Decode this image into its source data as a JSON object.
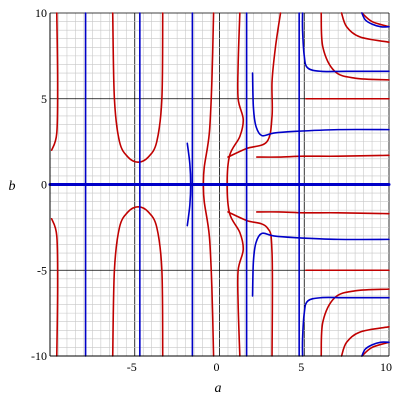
{
  "chart_data": {
    "type": "line",
    "title": "",
    "xlabel": "a",
    "ylabel": "b",
    "xlim": [
      -10,
      10
    ],
    "ylim": [
      -10,
      10
    ],
    "grid": true,
    "x_ticks": [
      {
        "value": -5,
        "label": "-5"
      },
      {
        "value": 0,
        "label": "0"
      },
      {
        "value": 5,
        "label": "5"
      },
      {
        "value": 10,
        "label": "10"
      }
    ],
    "y_ticks": [
      {
        "value": -10,
        "label": "-10"
      },
      {
        "value": -5,
        "label": "-5"
      },
      {
        "value": 0,
        "label": "0"
      },
      {
        "value": 5,
        "label": "5"
      },
      {
        "value": 10,
        "label": "10"
      }
    ],
    "colors": {
      "red": "#c00000",
      "blue": "#0000c8"
    },
    "curves": [
      {
        "color": "red",
        "points": [
          [
            -9.6,
            10
          ],
          [
            -9.55,
            6
          ],
          [
            -9.6,
            3
          ],
          [
            -9.9,
            2
          ]
        ]
      },
      {
        "color": "red",
        "points": [
          [
            -9.6,
            -10
          ],
          [
            -9.55,
            -6
          ],
          [
            -9.6,
            -3
          ],
          [
            -9.9,
            -2
          ]
        ]
      },
      {
        "color": "red",
        "points": [
          [
            -6.3,
            10
          ],
          [
            -6.2,
            5
          ],
          [
            -5.9,
            2.5
          ],
          [
            -5.4,
            1.6
          ],
          [
            -4.8,
            1.3
          ],
          [
            -4.2,
            1.6
          ],
          [
            -3.7,
            2.5
          ],
          [
            -3.4,
            5
          ],
          [
            -3.35,
            10
          ]
        ]
      },
      {
        "color": "red",
        "points": [
          [
            -6.3,
            -10
          ],
          [
            -6.2,
            -5
          ],
          [
            -5.9,
            -2.5
          ],
          [
            -5.4,
            -1.6
          ],
          [
            -4.8,
            -1.3
          ],
          [
            -4.2,
            -1.6
          ],
          [
            -3.7,
            -2.5
          ],
          [
            -3.4,
            -5
          ],
          [
            -3.35,
            -10
          ]
        ]
      },
      {
        "color": "red",
        "points": [
          [
            -0.35,
            10
          ],
          [
            -0.45,
            6
          ],
          [
            -0.6,
            3
          ],
          [
            -0.9,
            1
          ],
          [
            -0.95,
            0
          ],
          [
            -0.9,
            -1
          ],
          [
            -0.6,
            -3
          ],
          [
            -0.45,
            -6
          ],
          [
            -0.35,
            -10
          ]
        ]
      },
      {
        "color": "red",
        "points": [
          [
            1.2,
            10
          ],
          [
            1.1,
            7
          ],
          [
            1.1,
            5
          ],
          [
            1.4,
            3.8
          ],
          [
            1.2,
            2.8
          ],
          [
            0.6,
            1.7
          ],
          [
            0.45,
            0
          ],
          [
            0.6,
            -1.7
          ],
          [
            1.2,
            -2.8
          ],
          [
            1.4,
            -3.8
          ],
          [
            1.1,
            -5
          ],
          [
            1.1,
            -7
          ],
          [
            1.2,
            -10
          ]
        ]
      },
      {
        "color": "red",
        "points": [
          [
            3.1,
            -10
          ],
          [
            3.1,
            -4
          ],
          [
            2.8,
            -2.5
          ],
          [
            1.6,
            -2.1
          ],
          [
            0.5,
            -1.6
          ]
        ]
      },
      {
        "color": "red",
        "points": [
          [
            0.5,
            1.6
          ],
          [
            1.6,
            2.1
          ],
          [
            2.8,
            2.5
          ],
          [
            3.1,
            4
          ],
          [
            3.1,
            6
          ],
          [
            3.3,
            8
          ],
          [
            3.6,
            10
          ]
        ]
      },
      {
        "color": "red",
        "points": [
          [
            2.2,
            1.6
          ],
          [
            3.5,
            1.6
          ],
          [
            5,
            1.65
          ],
          [
            7,
            1.65
          ],
          [
            10,
            1.7
          ]
        ]
      },
      {
        "color": "red",
        "points": [
          [
            2.2,
            -1.6
          ],
          [
            3.5,
            -1.6
          ],
          [
            5,
            -1.65
          ],
          [
            7,
            -1.65
          ],
          [
            10,
            -1.7
          ]
        ]
      },
      {
        "color": "red",
        "points": [
          [
            5.1,
            5.0
          ],
          [
            6,
            5.0
          ],
          [
            7,
            5.0
          ],
          [
            8.5,
            5.0
          ],
          [
            10,
            5.0
          ]
        ]
      },
      {
        "color": "red",
        "points": [
          [
            5.1,
            -5.0
          ],
          [
            6,
            -5.0
          ],
          [
            7,
            -5.0
          ],
          [
            8.5,
            -5.0
          ],
          [
            10,
            -5.0
          ]
        ]
      },
      {
        "color": "red",
        "points": [
          [
            6.0,
            10
          ],
          [
            6.1,
            8
          ],
          [
            6.8,
            6.6
          ],
          [
            8,
            6.2
          ],
          [
            10,
            6.1
          ]
        ]
      },
      {
        "color": "red",
        "points": [
          [
            6.0,
            -10
          ],
          [
            6.1,
            -8
          ],
          [
            6.8,
            -6.6
          ],
          [
            8,
            -6.2
          ],
          [
            10,
            -6.1
          ]
        ]
      },
      {
        "color": "red",
        "points": [
          [
            7.2,
            10
          ],
          [
            7.5,
            9.2
          ],
          [
            8.3,
            8.6
          ],
          [
            10,
            8.3
          ]
        ]
      },
      {
        "color": "red",
        "points": [
          [
            7.2,
            -10
          ],
          [
            7.5,
            -9.2
          ],
          [
            8.3,
            -8.6
          ],
          [
            10,
            -8.3
          ]
        ]
      },
      {
        "color": "red",
        "points": [
          [
            8.4,
            10
          ],
          [
            9,
            9.5
          ],
          [
            10,
            9.2
          ]
        ]
      },
      {
        "color": "red",
        "points": [
          [
            8.4,
            -10
          ],
          [
            9,
            -9.5
          ],
          [
            10,
            -9.2
          ]
        ]
      },
      {
        "color": "blue",
        "points": [
          [
            -7.9,
            10
          ],
          [
            -7.9,
            -10
          ]
        ]
      },
      {
        "color": "blue",
        "points": [
          [
            -4.7,
            10
          ],
          [
            -4.7,
            -10
          ]
        ]
      },
      {
        "color": "blue",
        "points": [
          [
            -1.6,
            10
          ],
          [
            -1.6,
            -10
          ]
        ]
      },
      {
        "color": "blue",
        "points": [
          [
            -1.9,
            2.4
          ],
          [
            -1.75,
            1.2
          ],
          [
            -1.7,
            0
          ],
          [
            -1.75,
            -1.2
          ],
          [
            -1.9,
            -2.4
          ]
        ]
      },
      {
        "color": "blue",
        "points": [
          [
            1.6,
            10
          ],
          [
            1.6,
            -10
          ]
        ]
      },
      {
        "color": "blue",
        "points": [
          [
            4.7,
            10
          ],
          [
            4.7,
            -10
          ]
        ]
      },
      {
        "color": "blue",
        "points": [
          [
            -10,
            0
          ],
          [
            10,
            0
          ]
        ]
      },
      {
        "color": "blue",
        "points": [
          [
            10,
            3.2
          ],
          [
            7,
            3.2
          ],
          [
            4.5,
            3.1
          ],
          [
            3.2,
            3.0
          ],
          [
            2.5,
            2.85
          ],
          [
            2.15,
            3.4
          ],
          [
            2.0,
            4.5
          ],
          [
            1.95,
            6.5
          ]
        ]
      },
      {
        "color": "blue",
        "points": [
          [
            10,
            -3.2
          ],
          [
            7,
            -3.2
          ],
          [
            4.5,
            -3.1
          ],
          [
            3.2,
            -3.0
          ],
          [
            2.5,
            -2.85
          ],
          [
            2.15,
            -3.4
          ],
          [
            2.0,
            -4.5
          ],
          [
            1.95,
            -6.5
          ]
        ]
      },
      {
        "color": "blue",
        "points": [
          [
            10,
            6.6
          ],
          [
            7.5,
            6.6
          ],
          [
            6,
            6.6
          ],
          [
            5.2,
            6.8
          ],
          [
            5.0,
            7.5
          ],
          [
            4.9,
            9
          ],
          [
            4.9,
            10
          ]
        ]
      },
      {
        "color": "blue",
        "points": [
          [
            10,
            -6.6
          ],
          [
            7.5,
            -6.6
          ],
          [
            6,
            -6.6
          ],
          [
            5.2,
            -6.8
          ],
          [
            5.0,
            -7.5
          ],
          [
            4.9,
            -9
          ],
          [
            4.9,
            -10
          ]
        ]
      },
      {
        "color": "blue",
        "points": [
          [
            10,
            9.2
          ],
          [
            9.5,
            9.2
          ],
          [
            9,
            9.35
          ],
          [
            8.6,
            9.6
          ],
          [
            8.4,
            10
          ]
        ]
      },
      {
        "color": "blue",
        "points": [
          [
            10,
            -9.2
          ],
          [
            9.5,
            -9.2
          ],
          [
            9,
            -9.35
          ],
          [
            8.6,
            -9.6
          ],
          [
            8.4,
            -10
          ]
        ]
      }
    ]
  }
}
